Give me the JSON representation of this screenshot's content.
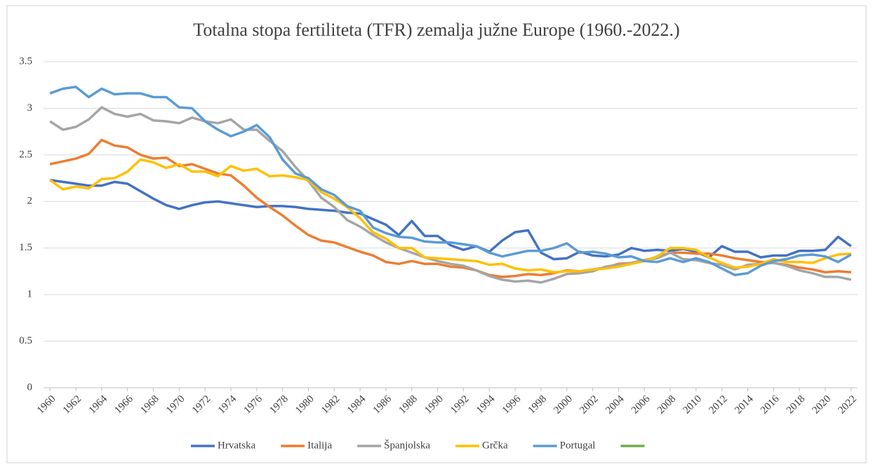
{
  "chart_data": {
    "type": "line",
    "title": "Totalna stopa fertiliteta (TFR) zemalja južne Europe (1960.-2022.)",
    "x": [
      1960,
      1961,
      1962,
      1963,
      1964,
      1965,
      1966,
      1967,
      1968,
      1969,
      1970,
      1971,
      1972,
      1973,
      1974,
      1975,
      1976,
      1977,
      1978,
      1979,
      1980,
      1981,
      1982,
      1983,
      1984,
      1985,
      1986,
      1987,
      1988,
      1989,
      1990,
      1991,
      1992,
      1993,
      1994,
      1995,
      1996,
      1997,
      1998,
      1999,
      2000,
      2001,
      2002,
      2003,
      2004,
      2005,
      2006,
      2007,
      2008,
      2009,
      2010,
      2011,
      2012,
      2013,
      2014,
      2015,
      2016,
      2017,
      2018,
      2019,
      2020,
      2021,
      2022
    ],
    "xlim": [
      1959.5,
      2022.5
    ],
    "xticks": [
      1960,
      1962,
      1964,
      1966,
      1968,
      1970,
      1972,
      1974,
      1976,
      1978,
      1980,
      1982,
      1984,
      1986,
      1988,
      1990,
      1992,
      1994,
      1996,
      1998,
      2000,
      2002,
      2004,
      2006,
      2008,
      2010,
      2012,
      2014,
      2016,
      2018,
      2020,
      2022
    ],
    "ylim": [
      0,
      3.5
    ],
    "yticks": [
      0,
      0.5,
      1,
      1.5,
      2,
      2.5,
      3,
      3.5
    ],
    "grid": true,
    "legend": "bottom",
    "series": [
      {
        "name": "Hrvatska",
        "color": "#4472c4",
        "values": [
          2.23,
          2.21,
          2.19,
          2.17,
          2.17,
          2.21,
          2.19,
          2.11,
          2.03,
          1.96,
          1.92,
          1.96,
          1.99,
          2.0,
          1.98,
          1.96,
          1.94,
          1.95,
          1.95,
          1.94,
          1.92,
          1.91,
          1.9,
          1.88,
          1.87,
          1.81,
          1.75,
          1.64,
          1.79,
          1.63,
          1.63,
          1.53,
          1.48,
          1.52,
          1.46,
          1.58,
          1.67,
          1.69,
          1.45,
          1.38,
          1.39,
          1.46,
          1.42,
          1.41,
          1.43,
          1.5,
          1.47,
          1.48,
          1.47,
          1.49,
          1.46,
          1.4,
          1.52,
          1.46,
          1.46,
          1.4,
          1.42,
          1.42,
          1.47,
          1.47,
          1.48,
          1.62,
          1.52
        ]
      },
      {
        "name": "Italija",
        "color": "#ed7d31",
        "values": [
          2.4,
          2.43,
          2.46,
          2.51,
          2.66,
          2.6,
          2.58,
          2.5,
          2.46,
          2.47,
          2.38,
          2.4,
          2.35,
          2.3,
          2.28,
          2.17,
          2.04,
          1.94,
          1.85,
          1.74,
          1.64,
          1.58,
          1.56,
          1.51,
          1.46,
          1.42,
          1.35,
          1.33,
          1.36,
          1.33,
          1.33,
          1.3,
          1.29,
          1.26,
          1.21,
          1.19,
          1.2,
          1.22,
          1.21,
          1.23,
          1.26,
          1.25,
          1.27,
          1.29,
          1.33,
          1.34,
          1.37,
          1.4,
          1.45,
          1.45,
          1.44,
          1.44,
          1.42,
          1.39,
          1.37,
          1.35,
          1.34,
          1.32,
          1.29,
          1.27,
          1.24,
          1.25,
          1.24
        ]
      },
      {
        "name": "Španjolska",
        "color": "#a5a5a5",
        "values": [
          2.86,
          2.77,
          2.8,
          2.88,
          3.01,
          2.94,
          2.91,
          2.94,
          2.87,
          2.86,
          2.84,
          2.9,
          2.86,
          2.84,
          2.88,
          2.77,
          2.77,
          2.65,
          2.54,
          2.37,
          2.22,
          2.04,
          1.94,
          1.8,
          1.73,
          1.64,
          1.56,
          1.5,
          1.45,
          1.4,
          1.36,
          1.33,
          1.31,
          1.26,
          1.2,
          1.16,
          1.14,
          1.15,
          1.13,
          1.17,
          1.22,
          1.23,
          1.25,
          1.3,
          1.32,
          1.34,
          1.37,
          1.39,
          1.45,
          1.38,
          1.37,
          1.34,
          1.32,
          1.27,
          1.32,
          1.33,
          1.34,
          1.31,
          1.26,
          1.23,
          1.19,
          1.19,
          1.16
        ]
      },
      {
        "name": "Grčka",
        "color": "#ffc000",
        "values": [
          2.23,
          2.13,
          2.16,
          2.14,
          2.24,
          2.25,
          2.32,
          2.45,
          2.42,
          2.36,
          2.4,
          2.32,
          2.32,
          2.27,
          2.38,
          2.33,
          2.35,
          2.27,
          2.28,
          2.26,
          2.23,
          2.1,
          2.03,
          1.94,
          1.82,
          1.67,
          1.6,
          1.5,
          1.5,
          1.4,
          1.39,
          1.38,
          1.37,
          1.36,
          1.32,
          1.33,
          1.28,
          1.26,
          1.27,
          1.24,
          1.25,
          1.25,
          1.27,
          1.28,
          1.3,
          1.33,
          1.36,
          1.41,
          1.5,
          1.5,
          1.48,
          1.4,
          1.34,
          1.29,
          1.3,
          1.33,
          1.38,
          1.35,
          1.35,
          1.34,
          1.39,
          1.43,
          1.44
        ]
      },
      {
        "name": "Portugal",
        "color": "#5b9bd5",
        "values": [
          3.16,
          3.21,
          3.23,
          3.12,
          3.21,
          3.15,
          3.16,
          3.16,
          3.12,
          3.12,
          3.01,
          3.0,
          2.86,
          2.77,
          2.7,
          2.75,
          2.82,
          2.69,
          2.45,
          2.3,
          2.25,
          2.13,
          2.07,
          1.95,
          1.9,
          1.72,
          1.66,
          1.62,
          1.61,
          1.57,
          1.56,
          1.56,
          1.54,
          1.52,
          1.45,
          1.41,
          1.44,
          1.47,
          1.47,
          1.5,
          1.55,
          1.45,
          1.46,
          1.44,
          1.4,
          1.41,
          1.36,
          1.35,
          1.39,
          1.35,
          1.39,
          1.35,
          1.28,
          1.21,
          1.23,
          1.31,
          1.36,
          1.38,
          1.42,
          1.43,
          1.41,
          1.35,
          1.43
        ]
      },
      {
        "color": "#70ad47",
        "values": [
          null,
          null,
          null,
          null,
          null,
          null,
          null,
          null,
          null,
          null,
          null,
          null,
          null,
          null,
          null,
          null,
          null,
          null,
          null,
          null,
          null,
          null,
          null,
          null,
          null,
          null,
          null,
          null,
          null,
          null,
          null,
          null,
          null,
          null,
          null,
          null,
          null,
          null,
          null,
          null,
          null,
          null,
          null,
          null,
          null,
          null,
          null,
          null,
          null,
          null,
          null,
          null,
          null,
          null,
          null,
          null,
          null,
          null,
          null,
          null,
          null,
          null,
          null
        ]
      }
    ]
  }
}
